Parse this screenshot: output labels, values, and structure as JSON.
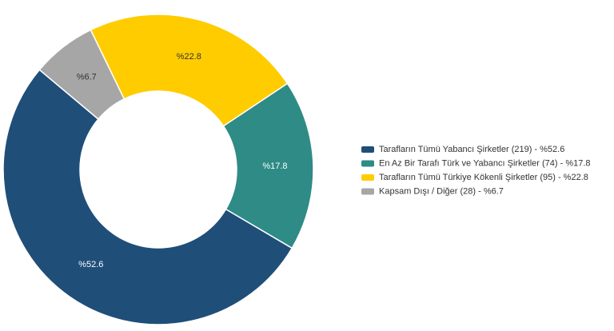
{
  "chart_data": {
    "type": "donut",
    "categories": [
      "Tarafların Tümü Yabancı Şirketler (219) - %52.6",
      "En Az Bir Tarafı Türk ve Yabancı Şirketler (74) - %17.8",
      "Tarafların Tümü Türkiye Kökenli Şirketler (95) - %22.8",
      "Kapsam Dışı / Diğer (28) - %6.7"
    ],
    "values": [
      52.6,
      17.8,
      22.8,
      6.7
    ],
    "value_labels": [
      "%52.6",
      "%17.8",
      "%22.8",
      "%6.7"
    ],
    "colors": [
      "#1f4e79",
      "#2e8b86",
      "#ffcc00",
      "#a6a6a6"
    ],
    "legend": "right"
  }
}
